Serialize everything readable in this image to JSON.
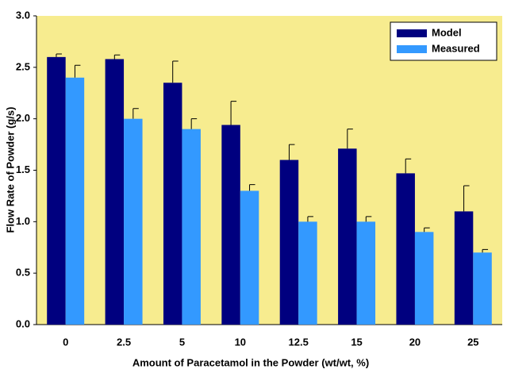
{
  "chart_data": {
    "type": "bar",
    "x_label": "Amount of Paracetamol in the Powder (wt/wt, %)",
    "y_label": "Flow Rate of Powder (g/s)",
    "categories": [
      "0",
      "2.5",
      "5",
      "10",
      "12.5",
      "15",
      "20",
      "25"
    ],
    "series": [
      {
        "name": "Model",
        "color": "#00007f",
        "values": [
          2.6,
          2.58,
          2.35,
          1.94,
          1.6,
          1.71,
          1.47,
          1.1
        ],
        "errors": [
          0.03,
          0.04,
          0.21,
          0.23,
          0.15,
          0.19,
          0.14,
          0.25
        ]
      },
      {
        "name": "Measured",
        "color": "#3399ff",
        "values": [
          2.4,
          2.0,
          1.9,
          1.3,
          1.0,
          1.0,
          0.9,
          0.7
        ],
        "errors": [
          0.12,
          0.1,
          0.1,
          0.06,
          0.05,
          0.05,
          0.04,
          0.03
        ]
      }
    ],
    "ylim": [
      0,
      3
    ],
    "yticks": [
      {
        "value": 0,
        "label": "0.0"
      },
      0.5,
      {
        "value": 1,
        "label": "1.0"
      },
      1.5,
      {
        "value": 2,
        "label": "2.0"
      },
      2.5,
      {
        "value": 3,
        "label": "3.0"
      }
    ],
    "legend": "upper right",
    "plot_background": "#f7ec8f"
  }
}
